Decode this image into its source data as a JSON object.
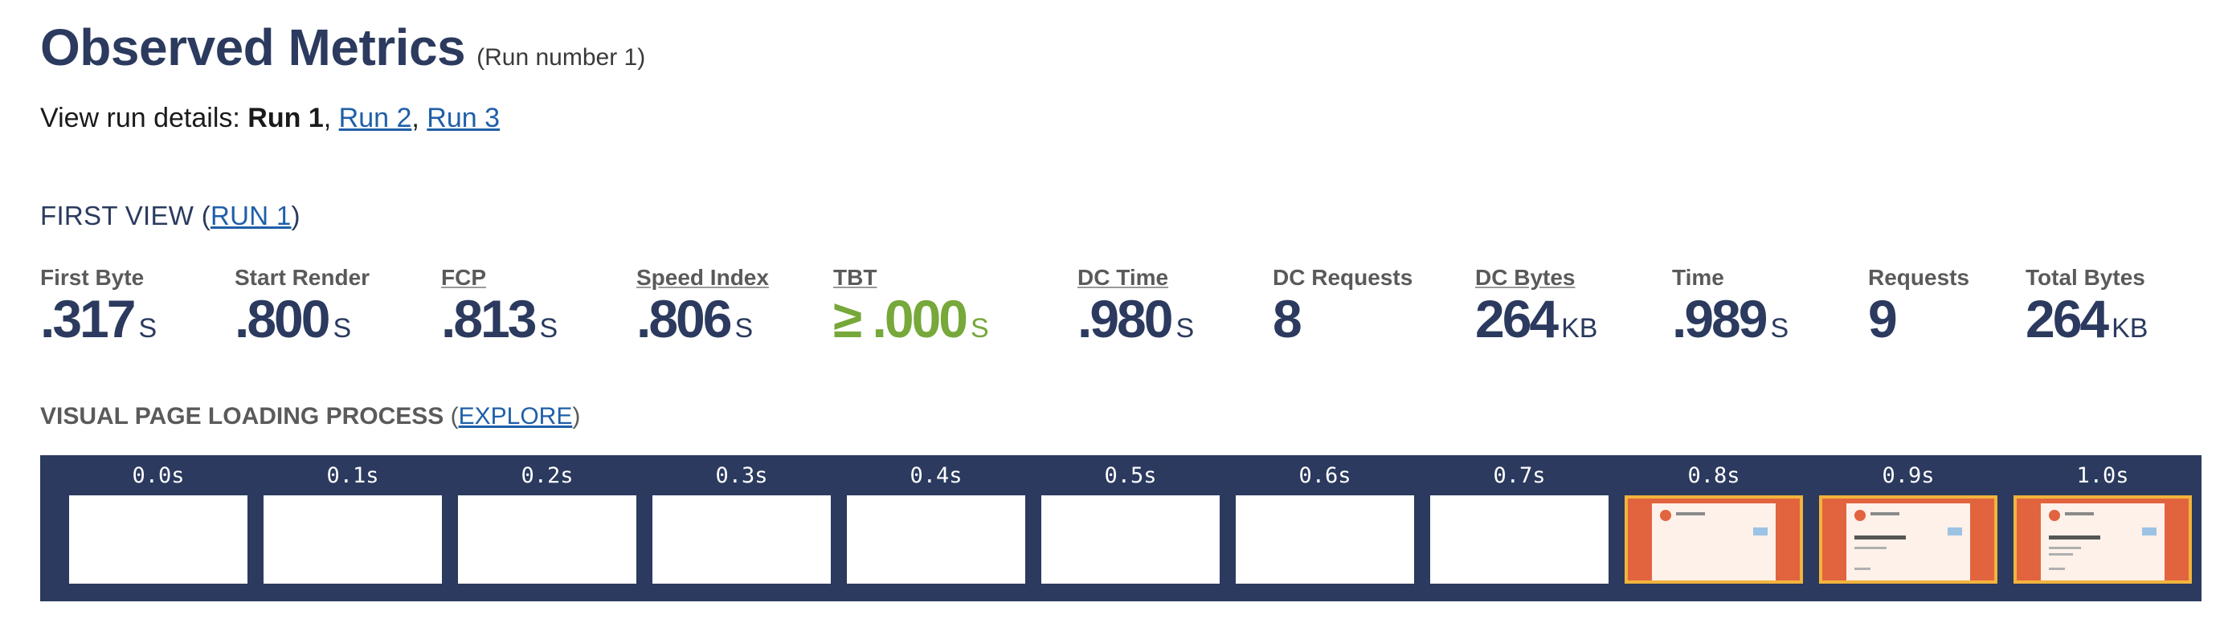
{
  "header": {
    "title": "Observed Metrics",
    "subtitle": "(Run number 1)"
  },
  "run_details": {
    "prefix": "View run details: ",
    "current": "Run 1",
    "sep1": ", ",
    "run2": "Run 2",
    "sep2": ", ",
    "run3": "Run 3"
  },
  "first_view": {
    "prefix": "FIRST VIEW (",
    "link": "RUN 1",
    "suffix": ")"
  },
  "metrics": [
    {
      "label": "First Byte",
      "value": ".317",
      "unit": "S"
    },
    {
      "label": "Start Render",
      "value": ".800",
      "unit": "S"
    },
    {
      "label": "FCP",
      "value": ".813",
      "unit": "S"
    },
    {
      "label": "Speed Index",
      "value": ".806",
      "unit": "S"
    },
    {
      "label": "TBT",
      "value": "≥ .000",
      "unit": "S"
    },
    {
      "label": "DC Time",
      "value": ".980",
      "unit": "S"
    },
    {
      "label": "DC Requests",
      "value": "8",
      "unit": ""
    },
    {
      "label": "DC Bytes",
      "value": "264",
      "unit": "KB"
    },
    {
      "label": "Time",
      "value": ".989",
      "unit": "S"
    },
    {
      "label": "Requests",
      "value": "9",
      "unit": ""
    },
    {
      "label": "Total Bytes",
      "value": "264",
      "unit": "KB"
    }
  ],
  "visual": {
    "title": "VISUAL PAGE LOADING PROCESS",
    "open": " (",
    "link": "EXPLORE",
    "close": ")"
  },
  "filmstrip": {
    "frames": [
      "0.0s",
      "0.1s",
      "0.2s",
      "0.3s",
      "0.4s",
      "0.5s",
      "0.6s",
      "0.7s",
      "0.8s",
      "0.9s",
      "1.0s"
    ],
    "changed_color": "#f2b43c",
    "background": "#2b3a5e"
  },
  "colors": {
    "heading": "#2b3a5e",
    "link": "#1f5fa8",
    "tbt_green": "#76a83a"
  }
}
